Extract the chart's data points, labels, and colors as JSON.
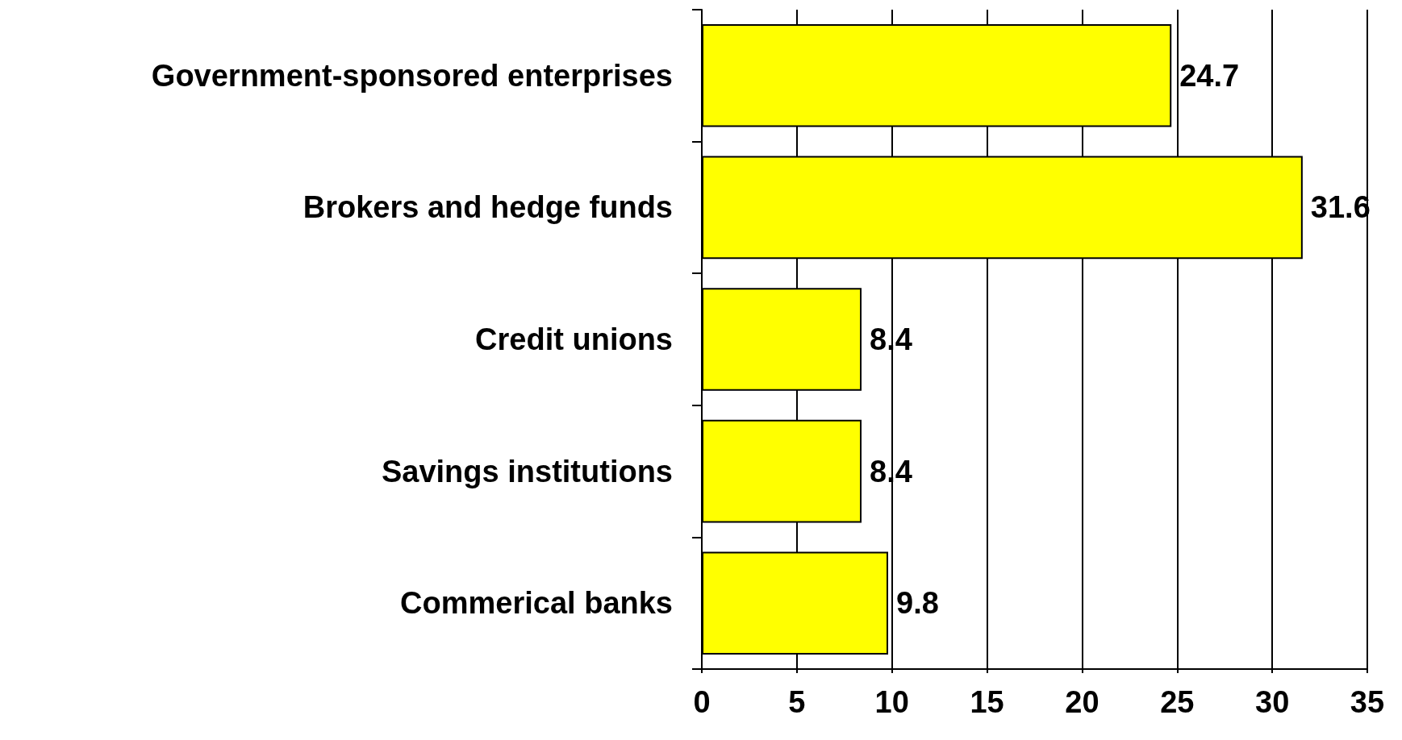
{
  "chart_data": {
    "type": "bar",
    "orientation": "horizontal",
    "categories": [
      "Government-sponsored enterprises",
      "Brokers and hedge funds",
      "Credit unions",
      "Savings institutions",
      "Commerical banks"
    ],
    "values": [
      24.7,
      31.6,
      8.4,
      8.4,
      9.8
    ],
    "color": "#ffff00",
    "xlim": [
      0,
      35
    ],
    "xticks": [
      0,
      5,
      10,
      15,
      20,
      25,
      30,
      35
    ],
    "grid": "x",
    "data_labels": true
  }
}
